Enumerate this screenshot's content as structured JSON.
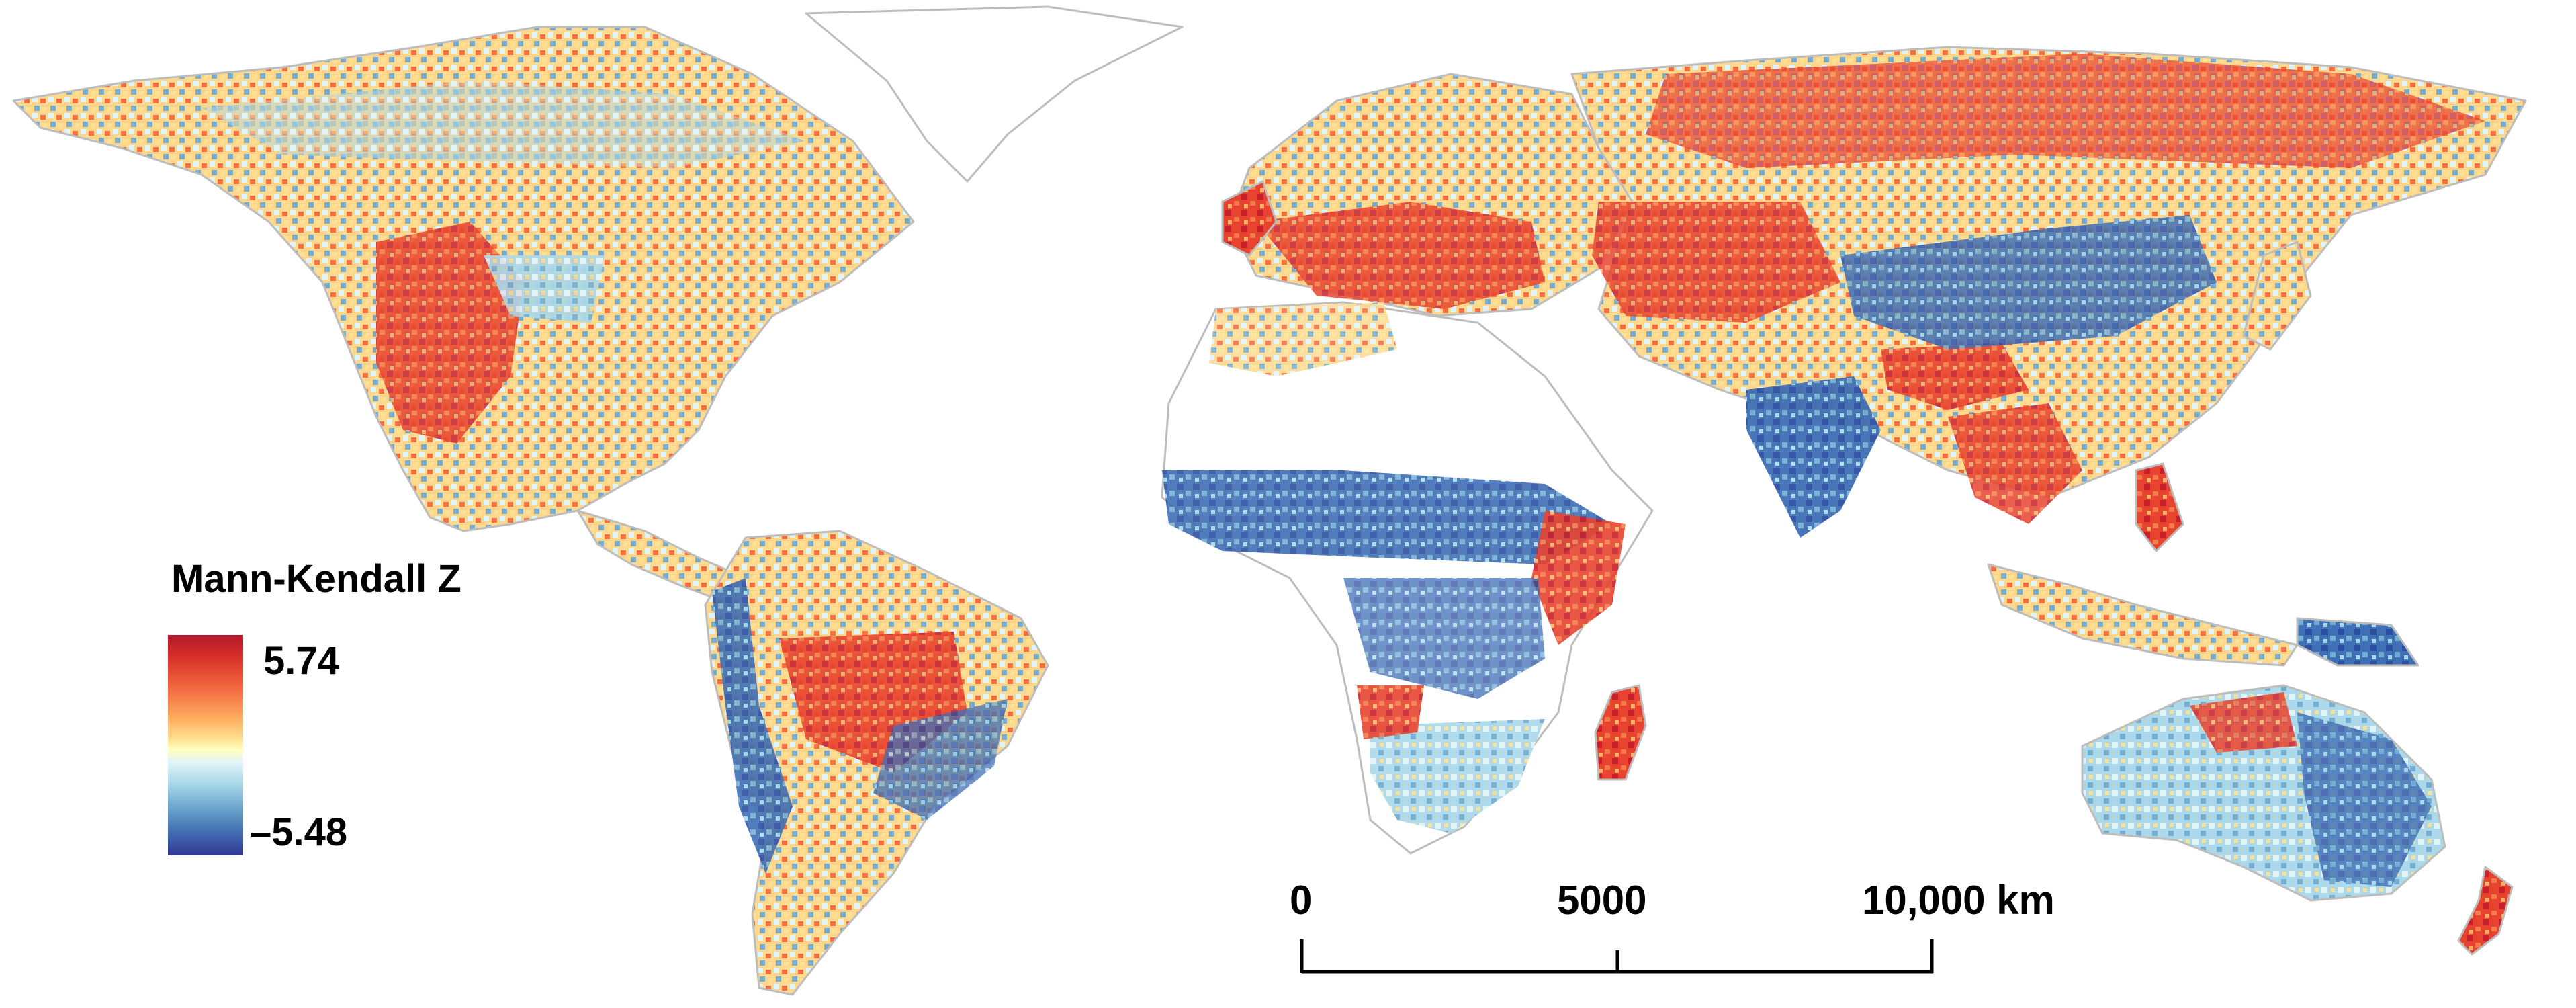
{
  "legend": {
    "title": "Mann-Kendall Z",
    "max_label": "5.74",
    "min_label": "–5.48",
    "colors": [
      "#b2182b",
      "#d73027",
      "#f46d43",
      "#fdae61",
      "#fee090",
      "#ffffbf",
      "#e0f3f8",
      "#abd9e9",
      "#74add1",
      "#4575b4",
      "#313695"
    ]
  },
  "scale_bar": {
    "labels": [
      "0",
      "5000",
      "10,000 km"
    ]
  },
  "map": {
    "projection": "world-equirectangular",
    "border_color": "#bdbdbd",
    "no_data_color": "#ffffff"
  }
}
